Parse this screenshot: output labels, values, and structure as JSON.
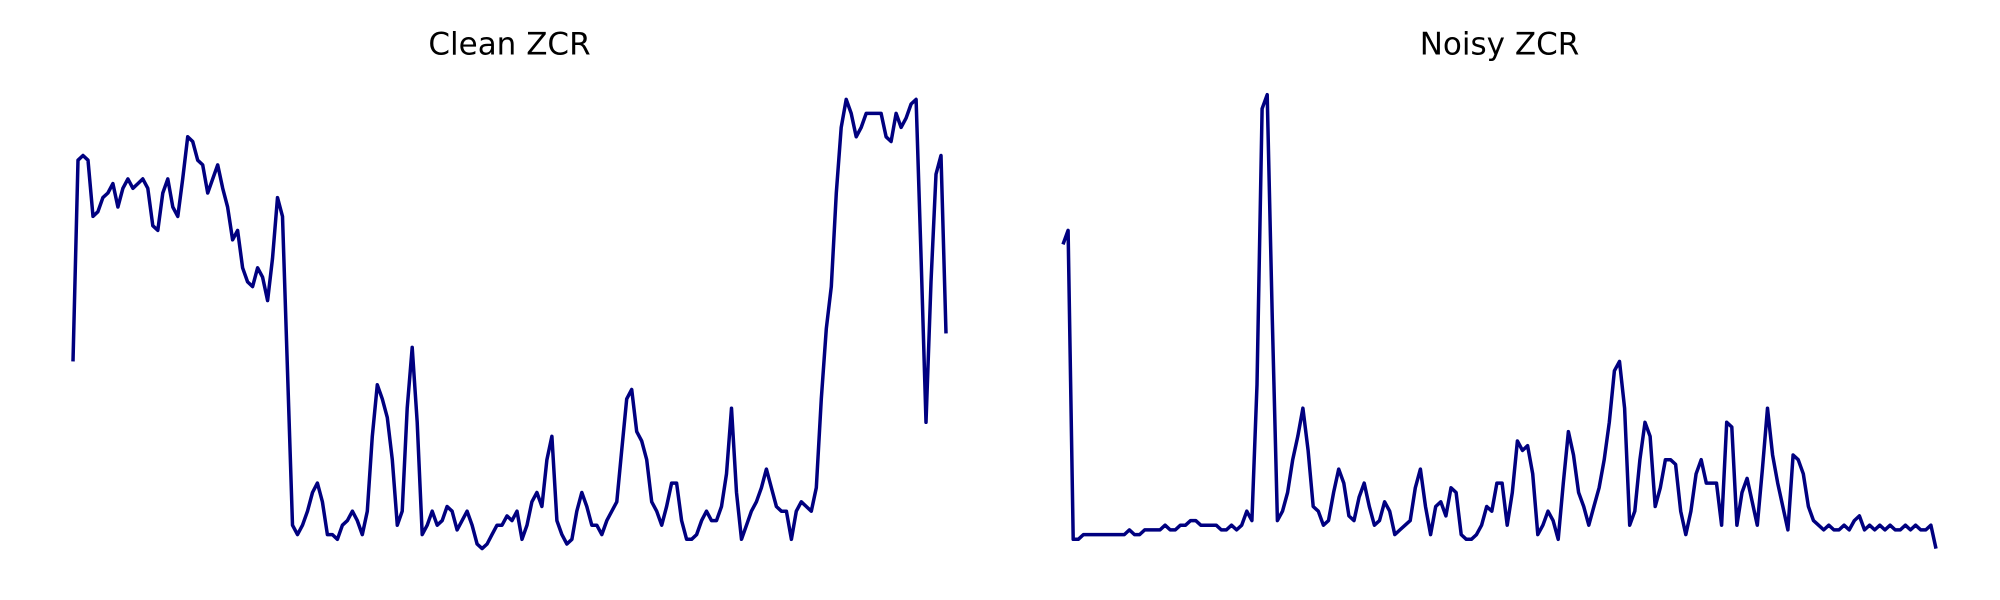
{
  "chart_data": [
    {
      "type": "line",
      "title": "Clean ZCR",
      "color": "#000080",
      "ylim": [
        0,
        1
      ],
      "values": [
        0.42,
        0.85,
        0.86,
        0.85,
        0.73,
        0.74,
        0.77,
        0.78,
        0.8,
        0.75,
        0.79,
        0.81,
        0.79,
        0.8,
        0.81,
        0.79,
        0.71,
        0.7,
        0.78,
        0.81,
        0.75,
        0.73,
        0.81,
        0.9,
        0.89,
        0.85,
        0.84,
        0.78,
        0.81,
        0.84,
        0.79,
        0.75,
        0.68,
        0.7,
        0.62,
        0.59,
        0.58,
        0.62,
        0.6,
        0.55,
        0.64,
        0.77,
        0.73,
        0.4,
        0.07,
        0.05,
        0.07,
        0.1,
        0.14,
        0.16,
        0.12,
        0.05,
        0.05,
        0.04,
        0.07,
        0.08,
        0.1,
        0.08,
        0.05,
        0.1,
        0.26,
        0.37,
        0.34,
        0.3,
        0.21,
        0.07,
        0.1,
        0.32,
        0.45,
        0.29,
        0.05,
        0.07,
        0.1,
        0.07,
        0.08,
        0.11,
        0.1,
        0.06,
        0.08,
        0.1,
        0.07,
        0.03,
        0.02,
        0.03,
        0.05,
        0.07,
        0.07,
        0.09,
        0.08,
        0.1,
        0.04,
        0.07,
        0.12,
        0.14,
        0.11,
        0.21,
        0.26,
        0.08,
        0.05,
        0.03,
        0.04,
        0.1,
        0.14,
        0.11,
        0.07,
        0.07,
        0.05,
        0.08,
        0.1,
        0.12,
        0.23,
        0.34,
        0.36,
        0.27,
        0.25,
        0.21,
        0.12,
        0.1,
        0.07,
        0.11,
        0.16,
        0.16,
        0.08,
        0.04,
        0.04,
        0.05,
        0.08,
        0.1,
        0.08,
        0.08,
        0.11,
        0.18,
        0.32,
        0.14,
        0.04,
        0.07,
        0.1,
        0.12,
        0.15,
        0.19,
        0.15,
        0.11,
        0.1,
        0.1,
        0.04,
        0.1,
        0.12,
        0.11,
        0.1,
        0.15,
        0.34,
        0.49,
        0.58,
        0.78,
        0.92,
        0.98,
        0.95,
        0.9,
        0.92,
        0.95,
        0.95,
        0.95,
        0.95,
        0.9,
        0.89,
        0.95,
        0.92,
        0.94,
        0.97,
        0.98,
        0.64,
        0.29,
        0.59,
        0.82,
        0.86,
        0.48
      ]
    },
    {
      "type": "line",
      "title": "Noisy ZCR",
      "color": "#000080",
      "ylim": [
        0,
        1
      ],
      "values": [
        0.67,
        0.7,
        0.04,
        0.04,
        0.05,
        0.05,
        0.05,
        0.05,
        0.05,
        0.05,
        0.05,
        0.05,
        0.05,
        0.06,
        0.05,
        0.05,
        0.06,
        0.06,
        0.06,
        0.06,
        0.07,
        0.06,
        0.06,
        0.07,
        0.07,
        0.08,
        0.08,
        0.07,
        0.07,
        0.07,
        0.07,
        0.06,
        0.06,
        0.07,
        0.06,
        0.07,
        0.1,
        0.08,
        0.37,
        0.96,
        0.99,
        0.51,
        0.08,
        0.1,
        0.14,
        0.21,
        0.26,
        0.32,
        0.23,
        0.11,
        0.1,
        0.07,
        0.08,
        0.14,
        0.19,
        0.16,
        0.09,
        0.08,
        0.13,
        0.16,
        0.11,
        0.07,
        0.08,
        0.12,
        0.1,
        0.05,
        0.06,
        0.07,
        0.08,
        0.15,
        0.19,
        0.11,
        0.05,
        0.11,
        0.12,
        0.09,
        0.15,
        0.14,
        0.05,
        0.04,
        0.04,
        0.05,
        0.07,
        0.11,
        0.1,
        0.16,
        0.16,
        0.07,
        0.14,
        0.25,
        0.23,
        0.24,
        0.18,
        0.05,
        0.07,
        0.1,
        0.08,
        0.04,
        0.16,
        0.27,
        0.22,
        0.14,
        0.11,
        0.07,
        0.11,
        0.15,
        0.21,
        0.29,
        0.4,
        0.42,
        0.32,
        0.07,
        0.1,
        0.21,
        0.29,
        0.26,
        0.11,
        0.15,
        0.21,
        0.21,
        0.2,
        0.1,
        0.05,
        0.1,
        0.18,
        0.21,
        0.16,
        0.16,
        0.16,
        0.07,
        0.29,
        0.28,
        0.07,
        0.14,
        0.17,
        0.12,
        0.07,
        0.19,
        0.32,
        0.22,
        0.16,
        0.11,
        0.06,
        0.22,
        0.21,
        0.18,
        0.11,
        0.08,
        0.07,
        0.06,
        0.07,
        0.06,
        0.06,
        0.07,
        0.06,
        0.08,
        0.09,
        0.06,
        0.07,
        0.06,
        0.07,
        0.06,
        0.07,
        0.06,
        0.06,
        0.07,
        0.06,
        0.07,
        0.06,
        0.06,
        0.07,
        0.02
      ]
    }
  ]
}
